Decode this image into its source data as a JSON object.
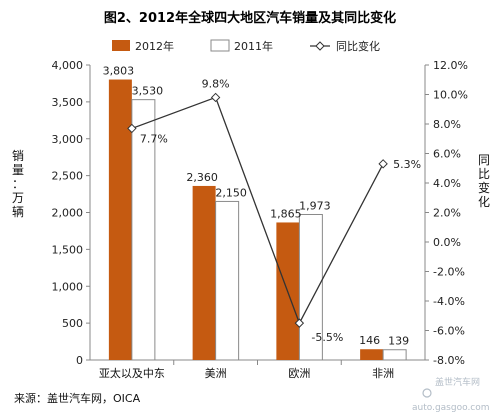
{
  "chart_data": {
    "type": "bar",
    "title": "图2、2012年全球四大地区汽车销量及其同比变化",
    "categories": [
      "亚太以及中东",
      "美洲",
      "欧洲",
      "非洲"
    ],
    "series": [
      {
        "name": "2012年",
        "type": "bar",
        "axis": "left",
        "color": "#c55a11",
        "values": [
          3803,
          2360,
          1865,
          146
        ]
      },
      {
        "name": "2011年",
        "type": "bar",
        "axis": "left",
        "color": "#ffffff",
        "values": [
          3530,
          2150,
          1973,
          139
        ]
      },
      {
        "name": "同比变化",
        "type": "line",
        "axis": "right",
        "color": "#333333",
        "values": [
          7.7,
          9.8,
          -5.5,
          5.3
        ]
      }
    ],
    "data_labels": {
      "bar_2012": [
        "3,803",
        "2,360",
        "1,865",
        "146"
      ],
      "bar_2011": [
        "3,530",
        "2,150",
        "1,973",
        "139"
      ],
      "line": [
        "7.7%",
        "9.8%",
        "-5.5%",
        "5.3%"
      ],
      "line_colors": [
        "#222222",
        "#222222",
        "#e03030",
        "#222222"
      ]
    },
    "ylabel": "销量：万辆",
    "y2label": "同比变化",
    "ylim": [
      0,
      4000
    ],
    "y2lim": [
      -8.0,
      12.0
    ],
    "y_ticks": [
      "0",
      "500",
      "1,000",
      "1,500",
      "2,000",
      "2,500",
      "3,000",
      "3,500",
      "4,000"
    ],
    "y2_ticks": [
      "-8.0%",
      "-6.0%",
      "-4.0%",
      "-2.0%",
      "0.0%",
      "2.0%",
      "4.0%",
      "6.0%",
      "8.0%",
      "10.0%",
      "12.0%"
    ],
    "legend_position": "top",
    "grid": false
  },
  "source": "来源：盖世汽车网，OICA",
  "watermark": {
    "name": "盖世汽车网",
    "site": "auto.gasgoo.com"
  }
}
